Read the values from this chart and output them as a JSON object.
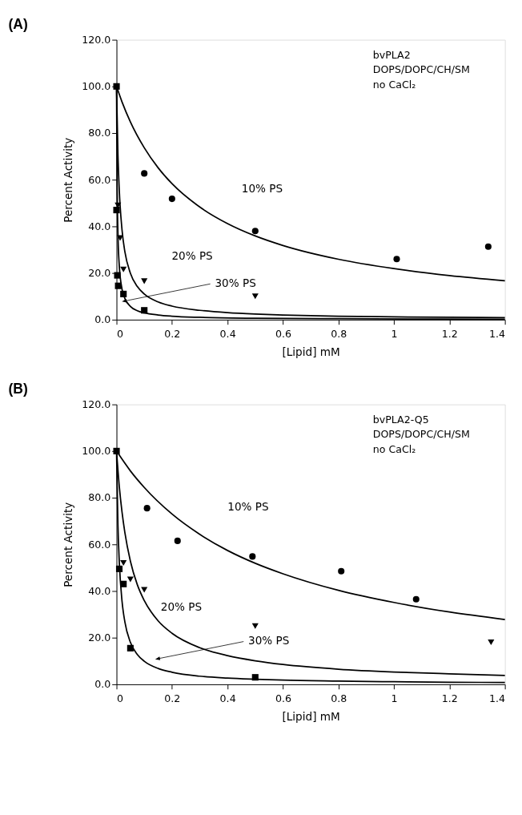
{
  "chart_data": [
    {
      "type": "scatter",
      "title": "(A)",
      "subtitle": "bvPLA2\nDOPS/DOPC/CH/SM\nno CaCl₂",
      "xlabel": "[Lipid] mM",
      "ylabel": "Percent Activity",
      "xlim": [
        0,
        1.4
      ],
      "xticks": [
        0,
        0.2,
        0.4,
        0.6,
        0.8,
        1,
        1.2,
        1.4
      ],
      "ylim": [
        0,
        120
      ],
      "yticks": [
        {
          "value": 0,
          "label": "0.0"
        },
        {
          "value": 20,
          "label": "20.0"
        },
        {
          "value": 40,
          "label": "40.0"
        },
        {
          "value": 60,
          "label": "60.0"
        },
        {
          "value": 80,
          "label": "80.0"
        },
        {
          "value": 100,
          "label": "100.0"
        },
        {
          "value": 120,
          "label": "120.0"
        }
      ],
      "grid": false,
      "series": [
        {
          "type": "scatter",
          "marker": "circle",
          "color": "#000000",
          "x": [
            0.1,
            0.2,
            0.5,
            1.01,
            1.34
          ],
          "values": [
            62.7,
            51.8,
            38.0,
            26.0,
            31.3
          ]
        },
        {
          "type": "scatter",
          "marker": "triangle",
          "color": "#000000",
          "x": [
            0.005,
            0.013,
            0.025,
            0.1,
            0.5
          ],
          "values": [
            49,
            35,
            21.5,
            16.5,
            10
          ]
        },
        {
          "type": "scatter",
          "marker": "square",
          "color": "#000000",
          "x": [
            0,
            0,
            0.003,
            0.006,
            0.025,
            0.1
          ],
          "values": [
            100,
            47,
            19,
            14.5,
            11,
            4
          ]
        },
        {
          "type": "line",
          "color": "#000000",
          "x": [
            0,
            0.02,
            0.05,
            0.1,
            0.15,
            0.2,
            0.3,
            0.4,
            0.5,
            0.6,
            0.8,
            1.0,
            1.2,
            1.4
          ],
          "values": [
            100,
            93.3,
            84.8,
            73.7,
            65.1,
            58.3,
            48.3,
            41.2,
            35.9,
            31.8,
            25.9,
            21.9,
            18.9,
            16.7
          ]
        },
        {
          "type": "line",
          "color": "#000000",
          "x": [
            0,
            0.005,
            0.01,
            0.02,
            0.03,
            0.05,
            0.075,
            0.1,
            0.15,
            0.2,
            0.3,
            0.4,
            0.5,
            0.6,
            0.8,
            1.0,
            1.2,
            1.4
          ],
          "values": [
            100,
            71.3,
            55.4,
            38.3,
            29.2,
            19.9,
            14.2,
            11.0,
            7.6,
            5.8,
            4.0,
            3.0,
            2.4,
            2.0,
            1.5,
            1.2,
            1.0,
            0.9
          ]
        },
        {
          "type": "line",
          "color": "#000000",
          "x": [
            0,
            0.002,
            0.005,
            0.01,
            0.02,
            0.03,
            0.05,
            0.075,
            0.1,
            0.15,
            0.2,
            0.3,
            0.5,
            0.8,
            1.4
          ],
          "values": [
            100,
            60,
            37.5,
            23.1,
            13.0,
            9.1,
            5.7,
            3.8,
            2.9,
            2.0,
            1.5,
            1.0,
            0.6,
            0.4,
            0.2
          ]
        }
      ],
      "annotations": [
        "10% PS",
        "20% PS",
        {
          "text": "30% PS",
          "x": 0.03,
          "y": 8
        }
      ]
    },
    {
      "type": "scatter",
      "title": "(B)",
      "subtitle": "bvPLA2-Q5\nDOPS/DOPC/CH/SM\nno CaCl₂",
      "xlabel": "[Lipid] mM",
      "ylabel": "Percent Activity",
      "xlim": [
        0,
        1.4
      ],
      "xticks": [
        0,
        0.2,
        0.4,
        0.6,
        0.8,
        1,
        1.2,
        1.4
      ],
      "ylim": [
        0,
        120
      ],
      "yticks": [
        {
          "value": 0,
          "label": "0.0"
        },
        {
          "value": 20,
          "label": "20.0"
        },
        {
          "value": 40,
          "label": "40.0"
        },
        {
          "value": 60,
          "label": "60.0"
        },
        {
          "value": 80,
          "label": "80.0"
        },
        {
          "value": 100,
          "label": "100.0"
        },
        {
          "value": 120,
          "label": "120.0"
        }
      ],
      "grid": false,
      "series": [
        {
          "type": "scatter",
          "marker": "circle",
          "color": "#000000",
          "x": [
            0.11,
            0.22,
            0.49,
            0.81,
            1.08
          ],
          "values": [
            75.5,
            61.5,
            54.8,
            48.5,
            36.5
          ]
        },
        {
          "type": "scatter",
          "marker": "triangle",
          "color": "#000000",
          "x": [
            0.025,
            0.05,
            0.1,
            0.5,
            1.35
          ],
          "values": [
            52,
            45,
            40.5,
            25,
            18
          ]
        },
        {
          "type": "scatter",
          "marker": "square",
          "color": "#000000",
          "x": [
            0,
            0.01,
            0.025,
            0.05,
            0.5
          ],
          "values": [
            100,
            49.5,
            43,
            15.5,
            3
          ]
        },
        {
          "type": "line",
          "color": "#000000",
          "x": [
            0,
            0.05,
            0.1,
            0.2,
            0.3,
            0.4,
            0.5,
            0.6,
            0.8,
            1.0,
            1.2,
            1.4
          ],
          "values": [
            100,
            91.5,
            84.4,
            73.0,
            64.3,
            57.4,
            51.9,
            47.4,
            40.3,
            35.1,
            31.0,
            27.8
          ]
        },
        {
          "type": "line",
          "color": "#000000",
          "x": [
            0,
            0.01,
            0.02,
            0.03,
            0.05,
            0.075,
            0.1,
            0.15,
            0.2,
            0.3,
            0.4,
            0.5,
            0.6,
            0.8,
            1.0,
            1.2,
            1.4
          ],
          "values": [
            100,
            84.8,
            73.7,
            65.1,
            52.8,
            42.7,
            35.9,
            27.2,
            21.9,
            15.7,
            12.3,
            10.1,
            8.5,
            6.5,
            5.3,
            4.5,
            3.8
          ]
        },
        {
          "type": "line",
          "color": "#000000",
          "x": [
            0,
            0.005,
            0.01,
            0.02,
            0.03,
            0.05,
            0.075,
            0.1,
            0.15,
            0.2,
            0.3,
            0.4,
            0.5,
            0.6,
            0.8,
            1.0,
            1.2,
            1.4
          ],
          "values": [
            100,
            68.8,
            52.4,
            35.5,
            26.8,
            18.0,
            12.8,
            9.9,
            6.8,
            5.2,
            3.5,
            2.7,
            2.2,
            1.8,
            1.4,
            1.1,
            0.9,
            0.8
          ]
        }
      ],
      "annotations": [
        "10% PS",
        "20% PS",
        {
          "text": "30% PS",
          "x": 0.15,
          "y": 11
        }
      ]
    }
  ]
}
